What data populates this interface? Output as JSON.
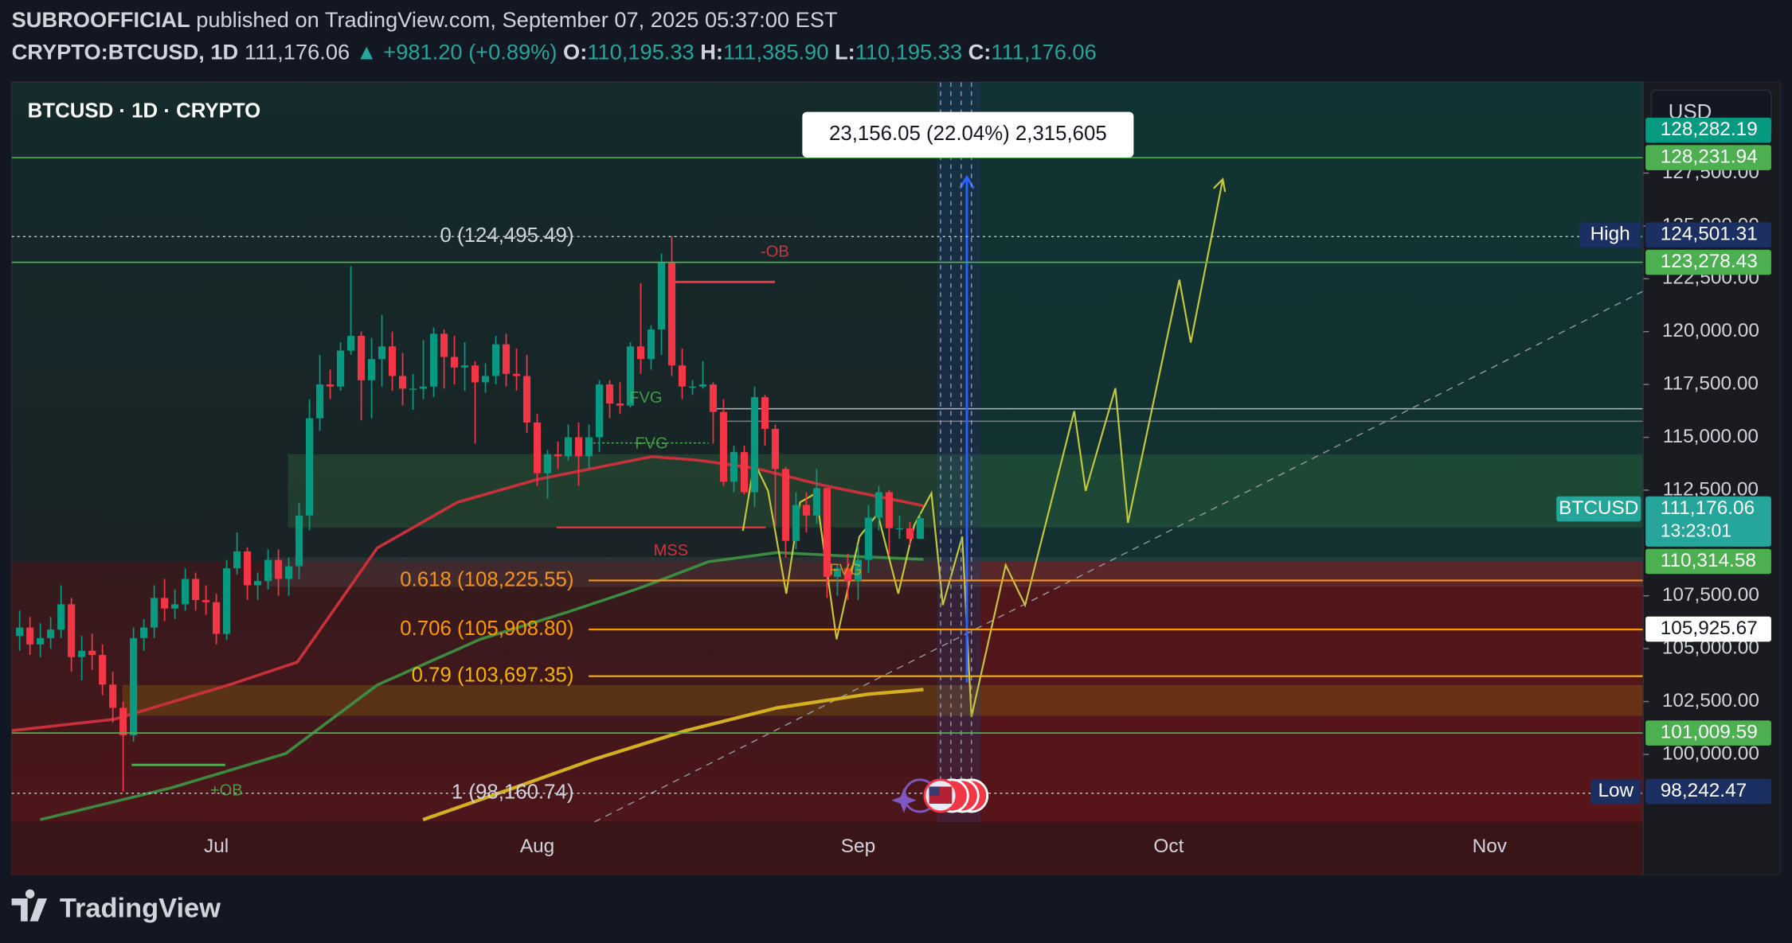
{
  "header": {
    "publisher": "SUBROOFFICIAL",
    "published": " published on TradingView.com, September 07, 2025 05:37:00 EST",
    "symbol": "CRYPTO:BTCUSD, 1D",
    "last": "111,176.06",
    "change": "▲ +981.20 (+0.89%)",
    "o_label": "O:",
    "o": "110,195.33",
    "h_label": "H:",
    "h": "111,385.90",
    "l_label": "L:",
    "l": "110,195.33",
    "c_label": "C:",
    "c": "111,176.06"
  },
  "chart_data": {
    "type": "candlestick",
    "title": "BTCUSD · 1D · CRYPTO",
    "currency": "USD",
    "up_color": "#089981",
    "down_color": "#f23645",
    "open": [
      105600,
      106000,
      105200,
      105500,
      105900,
      107100,
      104600,
      104900,
      104700,
      103300,
      102200,
      100900,
      105500,
      106000,
      107400,
      106900,
      107100,
      108300,
      107300,
      107200,
      105700,
      108800,
      109600,
      108000,
      108200,
      109200,
      108300,
      108900,
      111300,
      115900,
      117500,
      117400,
      119100,
      119800,
      117700,
      118700,
      119300,
      117900,
      117300,
      117300,
      117400,
      119900,
      118800,
      118300,
      118400,
      117600,
      117900,
      119400,
      118000,
      117900,
      115700,
      113300,
      114200,
      114100,
      115000,
      114100,
      115000,
      117500,
      116600,
      116500,
      119300,
      118700,
      120100,
      123300,
      118400,
      117400,
      117400,
      117500,
      116200,
      112900,
      114300,
      112400,
      116900,
      115400,
      113500,
      110100,
      111800,
      111300,
      112600,
      108400,
      108800,
      108200,
      109200,
      111200,
      112400,
      110700,
      110700,
      110195.33
    ],
    "high": [
      106800,
      106500,
      106200,
      106500,
      108000,
      107400,
      105600,
      105700,
      105200,
      103900,
      102500,
      106000,
      106400,
      108000,
      108300,
      107800,
      108800,
      108600,
      108000,
      107600,
      109200,
      110500,
      109800,
      108600,
      109700,
      109700,
      109300,
      111900,
      116800,
      118900,
      118200,
      119500,
      123100,
      120000,
      119700,
      120800,
      120000,
      119000,
      118000,
      119600,
      120200,
      120100,
      119800,
      119500,
      118600,
      118500,
      119800,
      119900,
      119200,
      118900,
      116100,
      114400,
      114800,
      115600,
      115700,
      115600,
      117700,
      117700,
      117600,
      119500,
      122300,
      120300,
      123700,
      124501.31,
      119200,
      117700,
      118600,
      117600,
      116800,
      114600,
      114600,
      117400,
      117000,
      115600,
      113600,
      112400,
      112400,
      113500,
      112600,
      109000,
      109500,
      109900,
      111800,
      112700,
      112500,
      111300,
      111000,
      111385.9
    ],
    "low": [
      104900,
      104700,
      104600,
      105000,
      105500,
      103900,
      103500,
      104000,
      102800,
      101500,
      98242.47,
      100600,
      104900,
      105500,
      106300,
      106400,
      106800,
      106800,
      106600,
      105200,
      105400,
      108500,
      107300,
      107300,
      107800,
      107500,
      107500,
      108300,
      110600,
      115300,
      116800,
      117200,
      118900,
      115800,
      115900,
      117400,
      117200,
      116500,
      116300,
      116800,
      116900,
      117300,
      117500,
      117200,
      114700,
      117100,
      117500,
      117400,
      117200,
      115200,
      112700,
      112100,
      113500,
      113900,
      112700,
      113500,
      114300,
      115900,
      116100,
      116400,
      118000,
      118200,
      118900,
      117900,
      116800,
      117000,
      117300,
      114700,
      112700,
      112400,
      112300,
      111700,
      114600,
      110800,
      109300,
      109700,
      110500,
      110900,
      107400,
      107500,
      107300,
      107300,
      108600,
      110600,
      109400,
      110200,
      109900,
      110195.33
    ],
    "close": [
      106000,
      105200,
      105500,
      105900,
      107100,
      104600,
      104900,
      104700,
      103300,
      102200,
      100900,
      105500,
      106000,
      107400,
      106900,
      107100,
      108300,
      107300,
      107200,
      105700,
      108800,
      109600,
      108000,
      108200,
      109200,
      108300,
      108900,
      111300,
      115900,
      117500,
      117400,
      119100,
      119800,
      117700,
      118700,
      119300,
      117900,
      117300,
      117300,
      117400,
      119900,
      118800,
      118300,
      118400,
      117600,
      117900,
      119400,
      118000,
      117900,
      115700,
      113300,
      114200,
      114100,
      115000,
      114100,
      115000,
      117500,
      116600,
      116500,
      119300,
      118700,
      120100,
      123300,
      118400,
      117400,
      117400,
      117500,
      116200,
      112900,
      114300,
      112400,
      116900,
      115400,
      113500,
      110100,
      111800,
      111300,
      112600,
      108400,
      108800,
      108200,
      109200,
      111200,
      112400,
      110700,
      110700,
      110200,
      111176.06
    ],
    "ylim": [
      96800,
      131800
    ],
    "yticks": [
      {
        "value": 127500,
        "label": "127,500.00"
      },
      {
        "value": 125000,
        "label": "125,000.00"
      },
      {
        "value": 122500,
        "label": "122,500.00"
      },
      {
        "value": 120000,
        "label": "120,000.00"
      },
      {
        "value": 117500,
        "label": "117,500.00"
      },
      {
        "value": 115000,
        "label": "115,000.00"
      },
      {
        "value": 112500,
        "label": "112,500.00"
      },
      {
        "value": 107500,
        "label": "107,500.00"
      },
      {
        "value": 105000,
        "label": "105,000.00"
      },
      {
        "value": 102500,
        "label": "102,500.00"
      },
      {
        "value": 100000,
        "label": "100,000.00"
      }
    ],
    "xtick_labels": [
      "Jul",
      "Aug",
      "Sep",
      "Oct",
      "Nov"
    ],
    "price_labels": [
      {
        "value": 128282.19,
        "label": "128,282.19",
        "color": "#089981"
      },
      {
        "value": 128231.94,
        "label": "128,231.94",
        "color": "#4caf50",
        "line": true
      },
      {
        "name": "High",
        "value": 124501.31,
        "label": "124,501.31",
        "color": "#1c2f63"
      },
      {
        "value": 123278.43,
        "label": "123,278.43",
        "color": "#4caf50",
        "line": true
      },
      {
        "name": "BTCUSD",
        "value": 111176.06,
        "label": "111,176.06",
        "countdown": "13:23:01",
        "color": "#26a69a"
      },
      {
        "value": 110314.58,
        "label": "110,314.58",
        "color": "#4caf50"
      },
      {
        "value": 105925.67,
        "label": "105,925.67",
        "color": "#ffffff"
      },
      {
        "value": 101009.59,
        "label": "101,009.59",
        "color": "#4caf50",
        "line": true
      },
      {
        "name": "Low",
        "value": 98242.47,
        "label": "98,242.47",
        "color": "#1c2f63"
      }
    ],
    "fib_levels": [
      {
        "value": 124495.49,
        "label": "0 (124,495.49)",
        "color": "#d1d4dc"
      },
      {
        "value": 108225.55,
        "label": "0.618 (108,225.55)",
        "color": "#f7931a"
      },
      {
        "value": 105908.8,
        "label": "0.706 (105,908.80)",
        "color": "#ff9800"
      },
      {
        "value": 103697.35,
        "label": "0.79 (103,697.35)",
        "color": "#f5b400"
      },
      {
        "value": 98160.74,
        "label": "1 (98,160.74)",
        "color": "#d1d4dc"
      }
    ],
    "annotations": [
      "-OB",
      "FVG",
      "FVG",
      "FVG",
      "MSS",
      "+OB"
    ],
    "measure": "23,156.05 (22.04%) 2,315,605"
  },
  "footer": {
    "logo": "TradingView"
  }
}
